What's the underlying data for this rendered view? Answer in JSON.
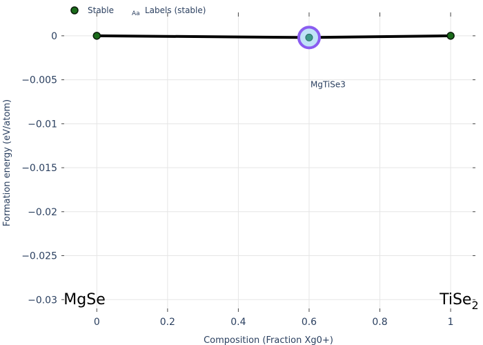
{
  "chart_data": {
    "type": "scatter",
    "xlabel": "Composition (Fraction Xg0+)",
    "ylabel": "Formation energy (eV/atom)",
    "xlim": [
      -0.1,
      1.07
    ],
    "ylim": [
      -0.031,
      0.0025
    ],
    "x_ticks": [
      0,
      0.2,
      0.4,
      0.6,
      0.8,
      1
    ],
    "x_tick_labels": [
      "0",
      "0.2",
      "0.4",
      "0.6",
      "0.8",
      "1"
    ],
    "y_ticks": [
      0,
      -0.005,
      -0.01,
      -0.015,
      -0.02,
      -0.025,
      -0.03
    ],
    "y_tick_labels": [
      "0",
      "−0.005",
      "−0.01",
      "−0.015",
      "−0.02",
      "−0.025",
      "−0.03"
    ],
    "grid": true,
    "legend_position": "top-left",
    "legend": [
      {
        "label": "Stable",
        "symbol": "filled-circle"
      },
      {
        "label": "Labels (stable)",
        "symbol": "text-aa",
        "glyph": "Aa"
      }
    ],
    "series": [
      {
        "name": "Stable",
        "color": "#1a6b1a",
        "line_color": "#000000",
        "points": [
          {
            "x": 0,
            "y": 0,
            "label": ""
          },
          {
            "x": 0.6,
            "y": -0.0002,
            "label": "MgTiSe3",
            "highlighted": true
          },
          {
            "x": 1,
            "y": 0,
            "label": ""
          }
        ]
      }
    ],
    "highlight": {
      "ring_color": "#8a5cf0",
      "fill_color": "#bfe3f7"
    },
    "endpoints": [
      {
        "x": 0,
        "text": "MgSe",
        "subscript": ""
      },
      {
        "x": 1,
        "text": "TiSe",
        "subscript": "2"
      }
    ]
  }
}
